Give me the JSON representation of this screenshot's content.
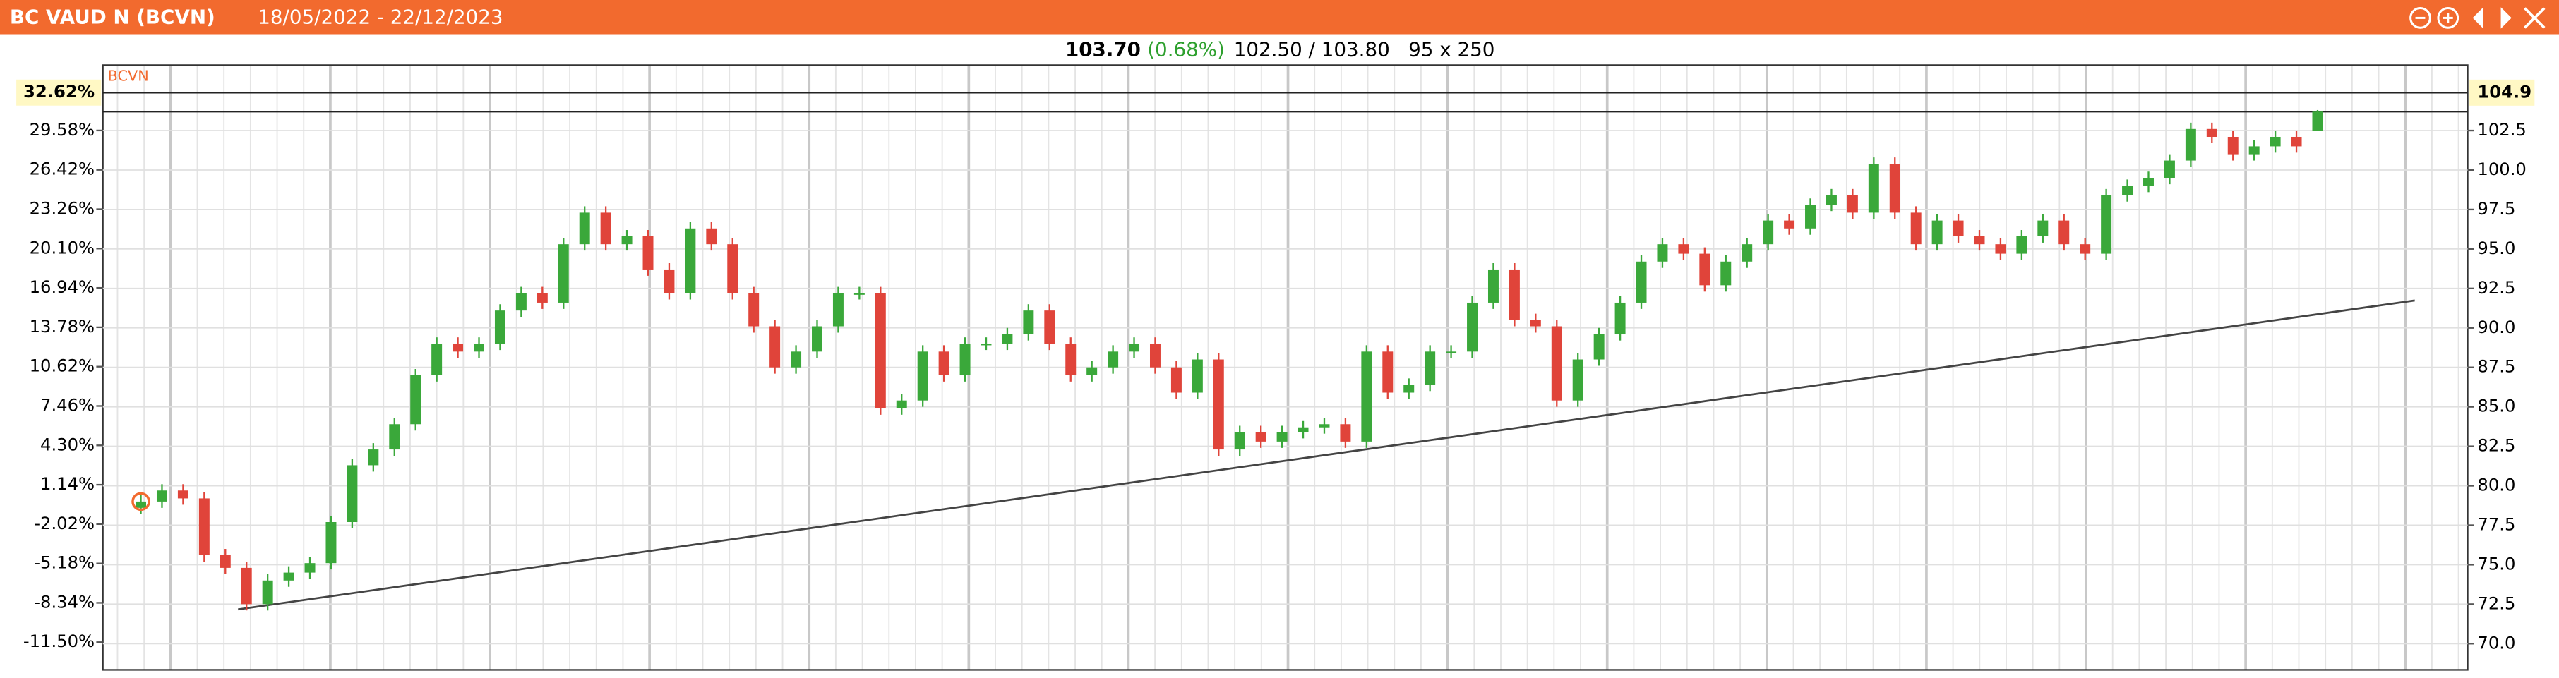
{
  "chart_data": {
    "type": "candlestick",
    "title": "BC VAUD N (BCVN)",
    "subtitle": "18/05/2022 - 22/12/2023",
    "info": {
      "last": "103.70",
      "change": "(0.68%)",
      "range": "102.50 / 103.80",
      "size": "95 x 250"
    },
    "legend": "BCVN",
    "up_color": "#3aa83a",
    "down_color": "#e0443a",
    "xlim": [
      -1.8,
      110.1
    ],
    "ylim": [
      68.34,
      106.64
    ],
    "yticks": [
      {
        "value": 70,
        "label": "70.0"
      },
      72.5,
      {
        "value": 75,
        "label": "75.0"
      },
      77.5,
      {
        "value": 80,
        "label": "80.0"
      },
      82.5,
      {
        "value": 85,
        "label": "85.0"
      },
      87.5,
      {
        "value": 90,
        "label": "90.0"
      },
      92.5,
      {
        "value": 95,
        "label": "95.0"
      },
      97.5,
      {
        "value": 100,
        "label": "100.0"
      },
      102.5
    ],
    "y2lim": [
      -13.72,
      34.82
    ],
    "y2ticks": [
      {
        "value": -11.5,
        "label": "-11.50%"
      },
      {
        "value": -8.34,
        "label": "-8.34%"
      },
      {
        "value": -5.18,
        "label": "-5.18%"
      },
      {
        "value": -2.02,
        "label": "-2.02%"
      },
      {
        "value": 1.14,
        "label": "1.14%"
      },
      {
        "value": 4.3,
        "label": "4.30%"
      },
      {
        "value": 7.46,
        "label": "7.46%"
      },
      {
        "value": 10.62,
        "label": "10.62%"
      },
      {
        "value": 13.78,
        "label": "13.78%"
      },
      {
        "value": 16.94,
        "label": "16.94%"
      },
      {
        "value": 20.1,
        "label": "20.10%"
      },
      {
        "value": 23.26,
        "label": "23.26%"
      },
      {
        "value": 26.42,
        "label": "26.42%"
      },
      {
        "value": 29.58,
        "label": "29.58%"
      }
    ],
    "marker": {
      "value": 104.9,
      "y2": {
        "value": 32.62,
        "label": "32.62%"
      }
    },
    "trendline": {
      "x": [
        4.6,
        107.6
      ],
      "y": [
        72.17,
        91.74
      ]
    },
    "grid": true,
    "open": [
      78.6,
      79.0,
      79.7,
      79.2,
      75.6,
      74.8,
      72.5,
      74.0,
      74.5,
      75.1,
      77.7,
      81.3,
      82.3,
      83.9,
      87.0,
      89.0,
      88.5,
      89.0,
      91.1,
      92.2,
      91.6,
      95.3,
      97.3,
      95.3,
      95.8,
      93.7,
      92.2,
      96.3,
      95.3,
      92.2,
      90.1,
      87.5,
      88.5,
      90.1,
      92.2,
      92.2,
      84.9,
      85.4,
      88.5,
      87.0,
      89.0,
      89.0,
      89.6,
      91.1,
      89.0,
      87.0,
      87.5,
      88.5,
      89.0,
      87.5,
      85.9,
      88.0,
      82.3,
      83.4,
      82.8,
      83.4,
      83.7,
      83.9,
      82.8,
      88.5,
      85.9,
      86.4,
      88.5,
      88.5,
      91.6,
      93.7,
      90.5,
      90.1,
      85.4,
      88.0,
      89.6,
      91.6,
      94.2,
      95.3,
      94.7,
      92.7,
      94.2,
      95.3,
      96.8,
      96.3,
      97.8,
      98.4,
      97.3,
      100.4,
      97.3,
      95.3,
      96.8,
      95.8,
      95.3,
      94.7,
      95.8,
      96.8,
      95.3,
      94.7,
      98.4,
      99.0,
      99.5,
      100.6,
      102.6,
      102.1,
      101.0,
      101.5,
      102.1,
      102.5
    ],
    "high": [
      79.4,
      80.1,
      80.1,
      79.6,
      76.0,
      75.2,
      74.4,
      74.9,
      75.5,
      78.1,
      81.7,
      82.7,
      84.3,
      87.4,
      89.4,
      89.4,
      89.4,
      91.5,
      92.6,
      92.6,
      95.7,
      97.7,
      97.7,
      96.2,
      96.2,
      94.1,
      96.7,
      96.7,
      95.7,
      92.6,
      90.5,
      88.9,
      90.5,
      92.6,
      92.6,
      92.6,
      85.8,
      88.9,
      88.9,
      89.4,
      89.4,
      90.0,
      91.5,
      91.5,
      89.4,
      87.9,
      88.9,
      89.4,
      89.4,
      87.9,
      88.4,
      88.4,
      83.8,
      83.8,
      83.8,
      84.1,
      84.3,
      84.3,
      88.9,
      88.9,
      86.8,
      88.9,
      88.9,
      92.0,
      94.1,
      94.1,
      90.9,
      90.5,
      88.4,
      90.0,
      92.0,
      94.6,
      95.7,
      95.7,
      95.1,
      94.6,
      95.7,
      97.2,
      97.2,
      98.2,
      98.8,
      98.8,
      100.8,
      100.8,
      97.7,
      97.2,
      97.2,
      96.2,
      95.7,
      96.2,
      97.2,
      97.2,
      95.7,
      98.8,
      99.4,
      99.9,
      101.0,
      103.0,
      103.0,
      102.5,
      101.9,
      102.5,
      102.5,
      103.8
    ],
    "low": [
      78.2,
      78.6,
      78.8,
      75.2,
      74.4,
      72.1,
      72.1,
      73.6,
      74.1,
      74.7,
      77.3,
      80.9,
      81.9,
      83.5,
      86.6,
      88.1,
      88.1,
      88.6,
      90.7,
      91.2,
      91.2,
      94.9,
      94.9,
      94.9,
      93.3,
      91.8,
      91.8,
      94.9,
      91.8,
      89.7,
      87.1,
      87.1,
      88.1,
      89.7,
      91.8,
      84.5,
      84.5,
      85.0,
      86.6,
      86.6,
      88.6,
      88.6,
      89.2,
      88.6,
      86.6,
      86.6,
      87.1,
      88.1,
      87.1,
      85.5,
      85.5,
      81.9,
      81.9,
      82.4,
      82.4,
      83.0,
      83.3,
      82.4,
      82.4,
      85.5,
      85.5,
      86.0,
      88.1,
      88.1,
      91.2,
      90.1,
      89.7,
      85.0,
      85.0,
      87.6,
      89.2,
      91.2,
      93.8,
      94.3,
      92.3,
      92.3,
      93.8,
      94.9,
      95.9,
      95.9,
      97.4,
      96.9,
      96.9,
      96.9,
      94.9,
      94.9,
      95.4,
      94.9,
      94.3,
      94.3,
      95.4,
      94.9,
      94.3,
      94.3,
      98.0,
      98.6,
      99.1,
      100.2,
      101.7,
      100.6,
      100.6,
      101.1,
      101.1,
      102.5
    ],
    "close": [
      79.0,
      79.7,
      79.2,
      75.6,
      74.8,
      72.5,
      74.0,
      74.5,
      75.1,
      77.7,
      81.3,
      82.3,
      83.9,
      87.0,
      89.0,
      88.5,
      89.0,
      91.1,
      92.2,
      91.6,
      95.3,
      97.3,
      95.3,
      95.8,
      93.7,
      92.2,
      96.3,
      95.3,
      92.2,
      90.1,
      87.5,
      88.5,
      90.1,
      92.2,
      92.2,
      84.9,
      85.4,
      88.5,
      87.0,
      89.0,
      89.0,
      89.6,
      91.1,
      89.0,
      87.0,
      87.5,
      88.5,
      89.0,
      87.5,
      85.9,
      88.0,
      82.3,
      83.4,
      82.8,
      83.4,
      83.7,
      83.9,
      82.8,
      88.5,
      85.9,
      86.4,
      88.5,
      88.5,
      91.6,
      93.7,
      90.5,
      90.1,
      85.4,
      88.0,
      89.6,
      91.6,
      94.2,
      95.3,
      94.7,
      92.7,
      94.2,
      95.3,
      96.8,
      96.3,
      97.8,
      98.4,
      97.3,
      100.4,
      97.3,
      95.3,
      96.8,
      95.8,
      95.3,
      94.7,
      95.8,
      96.8,
      95.3,
      94.7,
      98.4,
      99.0,
      99.5,
      100.6,
      102.6,
      102.1,
      101.0,
      101.5,
      102.1,
      101.5,
      103.7
    ]
  }
}
